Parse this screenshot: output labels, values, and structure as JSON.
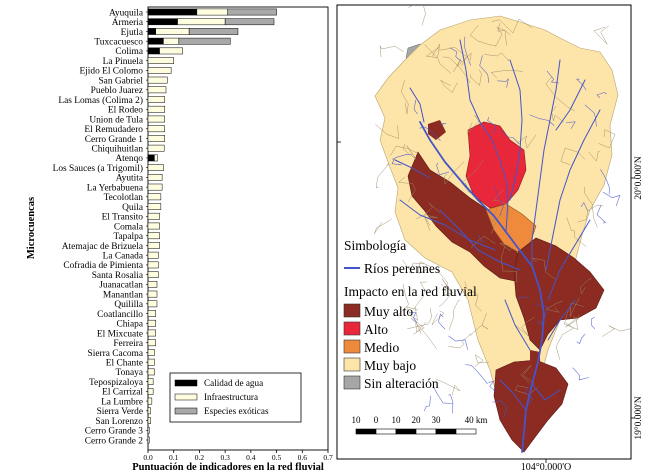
{
  "chart_data": {
    "type": "bar",
    "orientation": "horizontal",
    "stacked": true,
    "xlabel": "Puntuación de indicadores en la red fluvial",
    "ylabel": "Microcuencas",
    "xlim": [
      0,
      0.7
    ],
    "xticks": [
      "0.0",
      "0.1",
      "0.2",
      "0.3",
      "0.4",
      "0.5",
      "0.6",
      "0.7"
    ],
    "grid": false,
    "legend_position": "bottom-right",
    "categories": [
      "Ayuquila",
      "Armeria",
      "Ejutla",
      "Tuxcacuesco",
      "Colima",
      "La Pinuela",
      "Ejido El Colomo",
      "San Gabriel",
      "Pueblo Juarez",
      "Las Lomas (Colima 2)",
      "El Rodeo",
      "Union de Tula",
      "El Remudadero",
      "Cerro Grande 1",
      "Chiquihuitlan",
      "Atenqo",
      "Los Sauces (a Trigomil)",
      "Ayutita",
      "La Yerbabuena",
      "Tecolotlan",
      "Quila",
      "El Transito",
      "Comala",
      "Tapalpa",
      "Atemajac de Brizuela",
      "La Canada",
      "Cofradia de Pimienta",
      "Santa Rosalia",
      "Juanacatlan",
      "Manantlan",
      "Quililla",
      "Coatlancillo",
      "Chiapa",
      "El Mixcuate",
      "Ferreira",
      "Sierra Cacoma",
      "El Chante",
      "Tonaya",
      "Tepospizaloya",
      "El Carrizal",
      "La Lumbre",
      "Sierra Verde",
      "San Lorenzo",
      "Cerro Grande 3",
      "Cerro Grande 2"
    ],
    "series": [
      {
        "name": "Calidad de agua",
        "color": "#000000",
        "values": [
          0.19,
          0.115,
          0.03,
          0.06,
          0.045,
          0,
          0,
          0,
          0,
          0,
          0,
          0,
          0,
          0,
          0,
          0.025,
          0,
          0,
          0,
          0,
          0,
          0,
          0,
          0,
          0,
          0,
          0,
          0,
          0,
          0,
          0,
          0,
          0,
          0,
          0,
          0,
          0,
          0,
          0,
          0,
          0,
          0,
          0,
          0,
          0
        ]
      },
      {
        "name": "Infraestructura",
        "color": "#fffde0",
        "values": [
          0.12,
          0.185,
          0.13,
          0.06,
          0.09,
          0.1,
          0.09,
          0.075,
          0.07,
          0.065,
          0.065,
          0.065,
          0.065,
          0.065,
          0.063,
          0.012,
          0.06,
          0.055,
          0.055,
          0.05,
          0.05,
          0.045,
          0.045,
          0.045,
          0.045,
          0.04,
          0.04,
          0.04,
          0.035,
          0.035,
          0.035,
          0.03,
          0.03,
          0.03,
          0.03,
          0.025,
          0.025,
          0.025,
          0.02,
          0.02,
          0.015,
          0.01,
          0.01,
          0.005,
          0.005
        ]
      },
      {
        "name": "Especies exóticas",
        "color": "#a9a9a9",
        "values": [
          0.19,
          0.19,
          0.19,
          0.2,
          0,
          0,
          0,
          0,
          0,
          0,
          0,
          0,
          0,
          0,
          0,
          0,
          0,
          0,
          0,
          0,
          0,
          0,
          0,
          0,
          0,
          0,
          0,
          0,
          0,
          0,
          0,
          0,
          0,
          0,
          0,
          0,
          0,
          0,
          0,
          0,
          0,
          0,
          0,
          0,
          0
        ]
      }
    ]
  },
  "map": {
    "legend_title": "Simbología",
    "rivers_label": "Ríos perennes",
    "impact_title": "Impacto en la red fluvial",
    "classes": [
      {
        "label": "Muy alto",
        "color": "#8b2b22"
      },
      {
        "label": "Alto",
        "color": "#e8273a"
      },
      {
        "label": "Medio",
        "color": "#ef8a3c"
      },
      {
        "label": "Muy bajo",
        "color": "#fde4a8"
      },
      {
        "label": "Sin alteración",
        "color": "#a6a6a6"
      }
    ],
    "river_color": "#4455cc",
    "lat_20": "20°0.000'N",
    "lat_19": "19°0.000'N",
    "lon_104": "104°0.000'O",
    "scale_ticks": [
      "10",
      "0",
      "10",
      "20",
      "30",
      "40 km"
    ]
  }
}
